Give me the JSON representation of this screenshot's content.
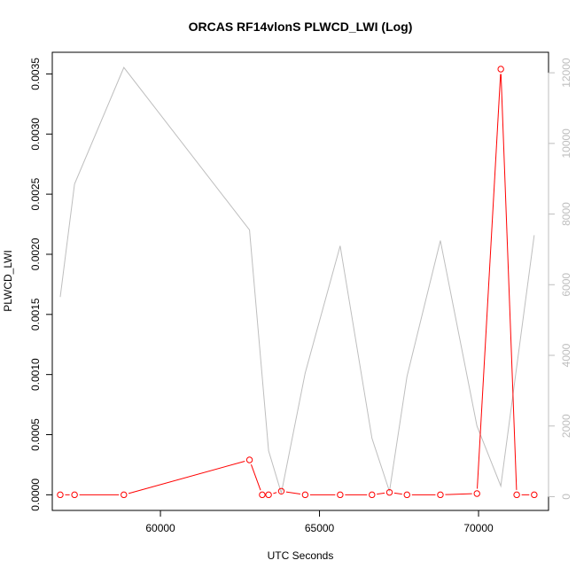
{
  "chart_data": {
    "type": "line",
    "title": "ORCAS RF14vlonS PLWCD_LWI (Log)",
    "xlabel": "UTC Seconds",
    "ylabel": "PLWCD_LWI",
    "xlim": [
      56600,
      72200
    ],
    "ylim": [
      -0.00013,
      0.00368
    ],
    "y2lim": [
      -390,
      12580
    ],
    "x_ticks": [
      60000,
      65000,
      70000
    ],
    "x_tick_labels": [
      "60000",
      "65000",
      "70000"
    ],
    "y_ticks": [
      0,
      0.0005,
      0.001,
      0.0015,
      0.002,
      0.0025,
      0.003,
      0.0035
    ],
    "y_tick_labels": [
      "0.0000",
      "0.0005",
      "0.0010",
      "0.0015",
      "0.0020",
      "0.0025",
      "0.0030",
      "0.0035"
    ],
    "y2_ticks": [
      0,
      2000,
      4000,
      6000,
      8000,
      10000,
      12000
    ],
    "y2_tick_labels": [
      "0",
      "2000",
      "4000",
      "6000",
      "8000",
      "10000",
      "12000"
    ],
    "grid": false,
    "legend": "none",
    "series": [
      {
        "axis": "left",
        "color": "#ff0000",
        "marker": "open-circle",
        "points": [
          {
            "x": 56850,
            "y": 0.0
          },
          {
            "x": 57300,
            "y": 0.0
          },
          {
            "x": 58850,
            "y": 0.0
          },
          {
            "x": 62800,
            "y": 0.00029
          },
          {
            "x": 63200,
            "y": 0.0
          },
          {
            "x": 63400,
            "y": 0.0
          },
          {
            "x": 63800,
            "y": 3e-05
          },
          {
            "x": 64550,
            "y": 0.0
          },
          {
            "x": 65650,
            "y": 0.0
          },
          {
            "x": 66650,
            "y": 0.0
          },
          {
            "x": 67200,
            "y": 2e-05
          },
          {
            "x": 67750,
            "y": 0.0
          },
          {
            "x": 68800,
            "y": 0.0
          },
          {
            "x": 69950,
            "y": 1e-05
          },
          {
            "x": 70700,
            "y": 0.00354
          },
          {
            "x": 71200,
            "y": 0.0
          },
          {
            "x": 71750,
            "y": 0.0
          }
        ]
      },
      {
        "axis": "right",
        "color": "#bebebe",
        "marker": "none",
        "points": [
          {
            "x": 56850,
            "y": 5650
          },
          {
            "x": 57300,
            "y": 8850
          },
          {
            "x": 58850,
            "y": 12150
          },
          {
            "x": 62800,
            "y": 7550
          },
          {
            "x": 63400,
            "y": 1300
          },
          {
            "x": 63800,
            "y": 100
          },
          {
            "x": 64550,
            "y": 3500
          },
          {
            "x": 65650,
            "y": 7100
          },
          {
            "x": 66650,
            "y": 1650
          },
          {
            "x": 67200,
            "y": 150
          },
          {
            "x": 67750,
            "y": 3400
          },
          {
            "x": 68800,
            "y": 7250
          },
          {
            "x": 69950,
            "y": 2000
          },
          {
            "x": 70700,
            "y": 300
          },
          {
            "x": 71750,
            "y": 7400
          }
        ]
      }
    ]
  }
}
